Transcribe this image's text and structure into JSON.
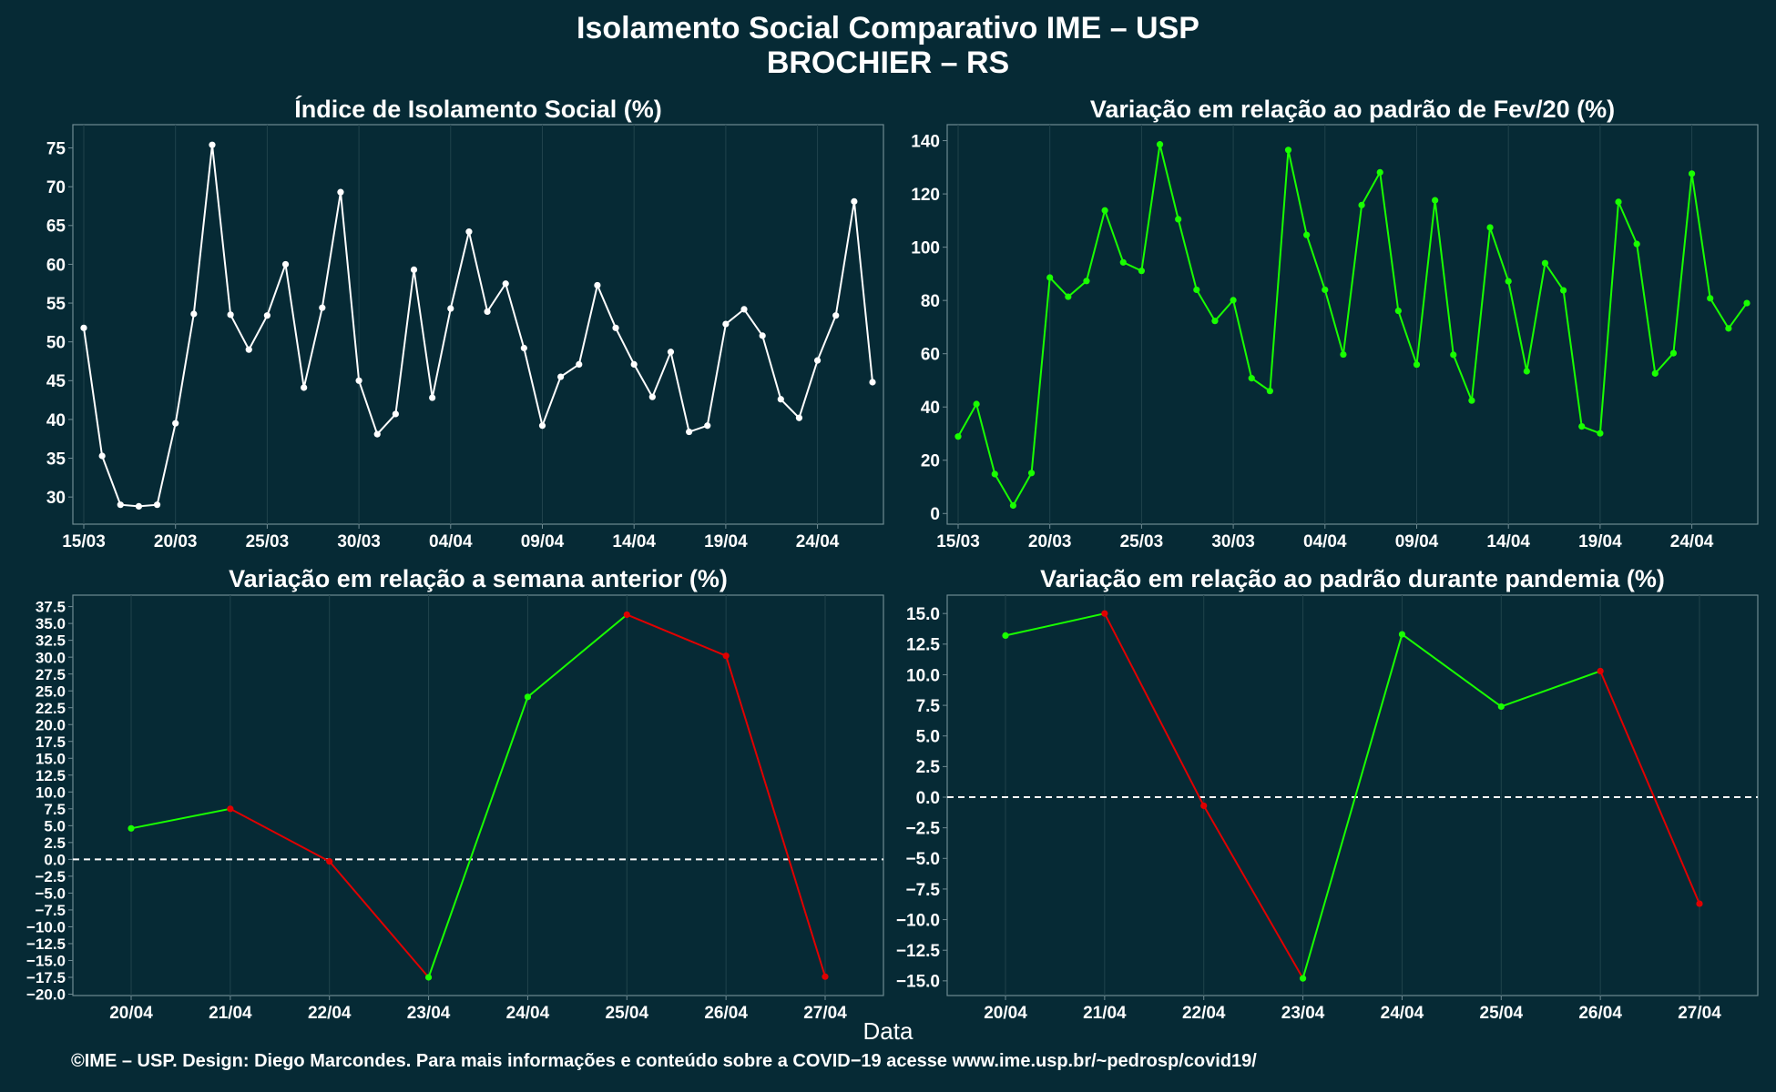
{
  "figure": {
    "title_line1": "Isolamento Social Comparativo IME – USP",
    "title_line2": "BROCHIER – RS",
    "shared_xlabel": "Data",
    "footer": "©IME – USP. Design: Diego Marcondes. Para mais informações e conteúdo sobre a COVID−19 acesse www.ime.usp.br/~pedrosp/covid19/"
  },
  "colors": {
    "background": "#062a35",
    "grid": "#20434c",
    "axis_border": "#6f8a92",
    "white_series": "#ffffff",
    "green": "#19ff00",
    "red": "#e00000",
    "zero_line": "#ffffff"
  },
  "chart_data": [
    {
      "id": "isolation-index",
      "type": "line",
      "title": "Índice de Isolamento Social (%)",
      "color": "white",
      "x_start_date": "2020-03-15",
      "x_ticks": [
        "15/03",
        "20/03",
        "25/03",
        "30/03",
        "04/04",
        "09/04",
        "14/04",
        "19/04",
        "24/04"
      ],
      "values": [
        51.8,
        35.3,
        29.0,
        28.8,
        29.0,
        39.5,
        53.6,
        75.4,
        53.5,
        49.0,
        53.4,
        60.0,
        44.1,
        54.4,
        69.3,
        45.0,
        38.1,
        40.7,
        59.3,
        42.8,
        54.3,
        64.2,
        53.9,
        57.5,
        49.2,
        39.2,
        45.5,
        47.1,
        57.3,
        51.8,
        47.1,
        42.9,
        48.7,
        38.4,
        39.2,
        52.3,
        54.2,
        50.8,
        42.6,
        40.2,
        47.6,
        53.4,
        68.1,
        44.8
      ],
      "ylim": [
        26.5,
        78
      ],
      "y_ticks": [
        30,
        35,
        40,
        45,
        50,
        55,
        60,
        65,
        70,
        75
      ],
      "y_tick_labels": [
        "30",
        "35",
        "40",
        "45",
        "50",
        "55",
        "60",
        "65",
        "70",
        "75"
      ]
    },
    {
      "id": "variation-feb",
      "type": "line",
      "title": "Variação em relação ao padrão de Fev/20 (%)",
      "color": "green",
      "x_start_date": "2020-03-15",
      "x_ticks": [
        "15/03",
        "20/03",
        "25/03",
        "30/03",
        "04/04",
        "09/04",
        "14/04",
        "19/04",
        "24/04"
      ],
      "values": [
        28.9,
        41.1,
        14.8,
        3.0,
        15.2,
        88.6,
        81.4,
        87.3,
        113.8,
        94.3,
        91.1,
        138.6,
        110.5,
        84.0,
        72.3,
        80.1,
        50.8,
        46.0,
        136.5,
        104.6,
        84.0,
        59.7,
        115.8,
        128.1,
        76.1,
        55.9,
        117.6,
        59.6,
        42.4,
        107.4,
        87.2,
        53.4,
        94.0,
        83.8,
        32.7,
        30.1,
        117.0,
        101.2,
        52.6,
        60.2,
        127.6,
        80.8,
        69.5,
        79.0
      ],
      "ylim": [
        -4,
        146
      ],
      "y_ticks": [
        0,
        20,
        40,
        60,
        80,
        100,
        120,
        140
      ],
      "y_tick_labels": [
        "0",
        "20",
        "40",
        "60",
        "80",
        "100",
        "120",
        "140"
      ]
    },
    {
      "id": "variation-previous-week",
      "type": "line",
      "title": "Variação em relação a semana anterior (%)",
      "categories": [
        "20/04",
        "21/04",
        "22/04",
        "23/04",
        "24/04",
        "25/04",
        "26/04",
        "27/04"
      ],
      "values": [
        4.6,
        7.5,
        -0.3,
        -17.5,
        24.1,
        36.3,
        30.2,
        -17.4
      ],
      "segment_colors": [
        "green",
        "red",
        "red",
        "green",
        "green",
        "red",
        "red"
      ],
      "ylim": [
        -20.2,
        39.2
      ],
      "y_ticks": [
        -20,
        -17.5,
        -15,
        -12.5,
        -10,
        -7.5,
        -5,
        -2.5,
        0,
        2.5,
        5,
        7.5,
        10,
        12.5,
        15,
        17.5,
        20,
        22.5,
        25,
        27.5,
        30,
        32.5,
        35,
        37.5
      ],
      "y_tick_labels": [
        "−20.0",
        "−17.5",
        "−15.0",
        "−12.5",
        "−10.0",
        "−7.5",
        "−5.0",
        "−2.5",
        "0.0",
        "2.5",
        "5.0",
        "7.5",
        "10.0",
        "12.5",
        "15.0",
        "17.5",
        "20.0",
        "22.5",
        "25.0",
        "27.5",
        "30.0",
        "32.5",
        "35.0",
        "37.5"
      ],
      "reference_line": 0
    },
    {
      "id": "variation-pandemic",
      "type": "line",
      "title": "Variação em relação ao padrão durante pandemia (%)",
      "categories": [
        "20/04",
        "21/04",
        "22/04",
        "23/04",
        "24/04",
        "25/04",
        "26/04",
        "27/04"
      ],
      "values": [
        13.2,
        15.0,
        -0.7,
        -14.8,
        13.3,
        7.4,
        10.3,
        -8.7
      ],
      "segment_colors": [
        "green",
        "red",
        "red",
        "green",
        "green",
        "green",
        "red"
      ],
      "ylim": [
        -16.2,
        16.5
      ],
      "y_ticks": [
        -15,
        -12.5,
        -10,
        -7.5,
        -5,
        -2.5,
        0,
        2.5,
        5,
        7.5,
        10,
        12.5,
        15
      ],
      "y_tick_labels": [
        "−15.0",
        "−12.5",
        "−10.0",
        "−7.5",
        "−5.0",
        "−2.5",
        "0.0",
        "2.5",
        "5.0",
        "7.5",
        "10.0",
        "12.5",
        "15.0"
      ],
      "reference_line": 0
    }
  ]
}
